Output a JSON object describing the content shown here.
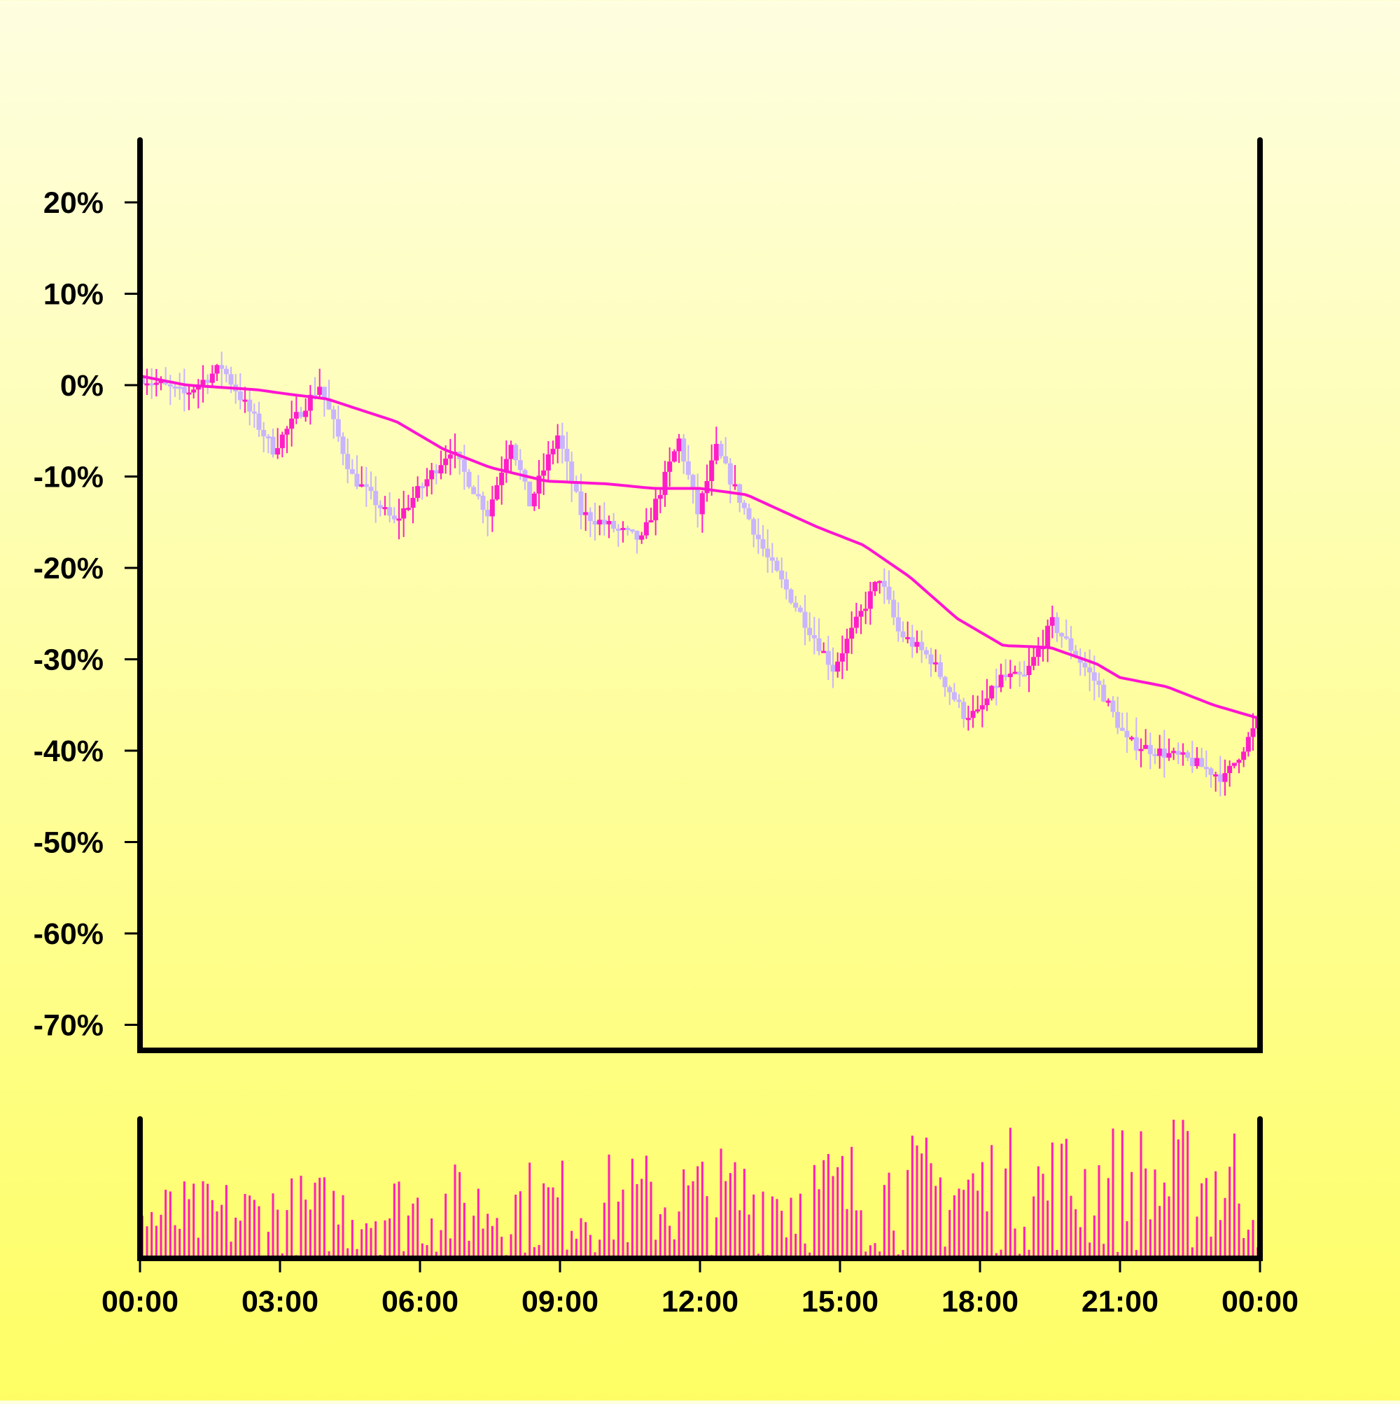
{
  "chart_data": {
    "type": "candlestick",
    "x_ticks": [
      "00:00",
      "03:00",
      "06:00",
      "09:00",
      "12:00",
      "15:00",
      "18:00",
      "21:00",
      "00:00"
    ],
    "y_ticks": [
      "20%",
      "10%",
      "0%",
      "-10%",
      "-20%",
      "-30%",
      "-40%",
      "-50%",
      "-60%",
      "-70%"
    ],
    "y_tick_values": [
      20,
      10,
      0,
      -10,
      -20,
      -30,
      -40,
      -50,
      -60,
      -70
    ],
    "ylim": [
      -73,
      27
    ],
    "x_range_hours": [
      0,
      24
    ],
    "price_path_key_points": [
      {
        "hour": 0.0,
        "value": 1
      },
      {
        "hour": 1.0,
        "value": -1
      },
      {
        "hour": 1.8,
        "value": 2
      },
      {
        "hour": 2.9,
        "value": -7
      },
      {
        "hour": 3.9,
        "value": 0
      },
      {
        "hour": 4.6,
        "value": -10
      },
      {
        "hour": 5.5,
        "value": -15
      },
      {
        "hour": 6.7,
        "value": -7
      },
      {
        "hour": 7.5,
        "value": -14
      },
      {
        "hour": 8.0,
        "value": -6
      },
      {
        "hour": 8.4,
        "value": -13
      },
      {
        "hour": 9.0,
        "value": -5.5
      },
      {
        "hour": 9.5,
        "value": -14
      },
      {
        "hour": 10.8,
        "value": -17
      },
      {
        "hour": 11.6,
        "value": -6
      },
      {
        "hour": 12.0,
        "value": -14
      },
      {
        "hour": 12.4,
        "value": -7
      },
      {
        "hour": 13.5,
        "value": -19
      },
      {
        "hour": 14.9,
        "value": -31
      },
      {
        "hour": 15.5,
        "value": -25
      },
      {
        "hour": 15.9,
        "value": -21
      },
      {
        "hour": 16.3,
        "value": -27
      },
      {
        "hour": 17.0,
        "value": -30
      },
      {
        "hour": 17.7,
        "value": -36
      },
      {
        "hour": 18.0,
        "value": -36
      },
      {
        "hour": 18.5,
        "value": -32
      },
      {
        "hour": 19.0,
        "value": -32
      },
      {
        "hour": 19.6,
        "value": -26
      },
      {
        "hour": 20.6,
        "value": -33
      },
      {
        "hour": 21.2,
        "value": -39
      },
      {
        "hour": 21.8,
        "value": -40
      },
      {
        "hour": 22.5,
        "value": -41
      },
      {
        "hour": 23.3,
        "value": -43
      },
      {
        "hour": 24.0,
        "value": -37
      }
    ],
    "moving_average_key_points": [
      {
        "hour": 0.0,
        "value": 1
      },
      {
        "hour": 1.0,
        "value": 0
      },
      {
        "hour": 2.5,
        "value": -0.5
      },
      {
        "hour": 3.2,
        "value": -1
      },
      {
        "hour": 4.0,
        "value": -1.5
      },
      {
        "hour": 5.5,
        "value": -4
      },
      {
        "hour": 6.5,
        "value": -7
      },
      {
        "hour": 7.5,
        "value": -9
      },
      {
        "hour": 8.7,
        "value": -10.5
      },
      {
        "hour": 10.0,
        "value": -10.8
      },
      {
        "hour": 11.0,
        "value": -11.3
      },
      {
        "hour": 12.0,
        "value": -11.3
      },
      {
        "hour": 13.0,
        "value": -12
      },
      {
        "hour": 14.5,
        "value": -15.5
      },
      {
        "hour": 15.5,
        "value": -17.5
      },
      {
        "hour": 16.5,
        "value": -21
      },
      {
        "hour": 17.5,
        "value": -25.5
      },
      {
        "hour": 18.5,
        "value": -28.5
      },
      {
        "hour": 19.5,
        "value": -28.7
      },
      {
        "hour": 20.5,
        "value": -30.5
      },
      {
        "hour": 21.0,
        "value": -32
      },
      {
        "hour": 22.0,
        "value": -33
      },
      {
        "hour": 23.0,
        "value": -35
      },
      {
        "hour": 24.0,
        "value": -36.5
      }
    ],
    "volume_trend": {
      "start": 0.28,
      "end": 0.55,
      "unit": "relative to volume panel height"
    },
    "colors": {
      "up_candle": "#ff1ec8",
      "down_candle": "#c8b4ff",
      "moving_average": "#ff14d2",
      "volume_bar": "#ff1eb4",
      "axis": "#000000",
      "background_top": "#fefee0",
      "background_bottom": "#fefe64"
    },
    "grid": false,
    "legend": "none"
  }
}
